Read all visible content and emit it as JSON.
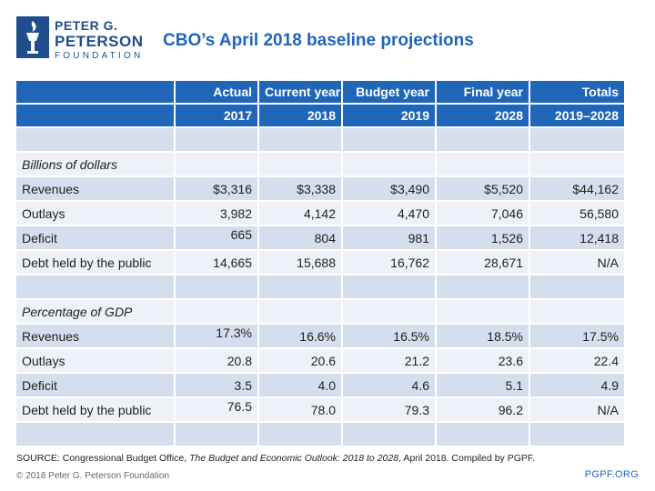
{
  "brand": {
    "line1": "PETER G.",
    "line2": "PETERSON",
    "line3": "FOUNDATION",
    "primary_color": "#1f4e8c",
    "accent_color": "#1f66b8",
    "logo_icon": "torch-icon"
  },
  "title": "CBO’s April 2018 baseline projections",
  "table": {
    "headers": [
      {
        "top": "",
        "bottom": ""
      },
      {
        "top": "Actual",
        "bottom": "2017"
      },
      {
        "top": "Current year",
        "bottom": "2018"
      },
      {
        "top": "Budget year",
        "bottom": "2019"
      },
      {
        "top": "Final year",
        "bottom": "2028"
      },
      {
        "top": "Totals",
        "bottom": "2019–2028"
      }
    ],
    "section1": {
      "label": "Billions of dollars",
      "rows": [
        {
          "label": "Revenues",
          "values": [
            "$3,316",
            "$3,338",
            "$3,490",
            "$5,520",
            "$44,162"
          ]
        },
        {
          "label": "Outlays",
          "values": [
            "3,982",
            "4,142",
            "4,470",
            "7,046",
            "56,580"
          ]
        },
        {
          "label": "Deficit",
          "values": [
            "665",
            "804",
            "981",
            "1,526",
            "12,418"
          ]
        },
        {
          "label": "Debt held by the public",
          "values": [
            "14,665",
            "15,688",
            "16,762",
            "28,671",
            "N/A"
          ]
        }
      ]
    },
    "section2": {
      "label": "Percentage of GDP",
      "rows": [
        {
          "label": "Revenues",
          "values": [
            "17.3%",
            "16.6%",
            "16.5%",
            "18.5%",
            "17.5%"
          ]
        },
        {
          "label": "Outlays",
          "values": [
            "20.8",
            "20.6",
            "21.2",
            "23.6",
            "22.4"
          ]
        },
        {
          "label": "Deficit",
          "values": [
            "3.5",
            "4.0",
            "4.6",
            "5.1",
            "4.9"
          ]
        },
        {
          "label": "Debt held by the public",
          "values": [
            "76.5",
            "78.0",
            "79.3",
            "96.2",
            "N/A"
          ]
        }
      ]
    }
  },
  "source": {
    "prefix": "SOURCE: Congressional Budget Office, ",
    "italic": "The Budget and Economic Outlook: 2018 to 2028",
    "suffix": ", April 2018. Compiled by PGPF."
  },
  "footer": {
    "copyright": "© 2018 Peter G. Peterson Foundation",
    "site": "PGPF.ORG"
  }
}
